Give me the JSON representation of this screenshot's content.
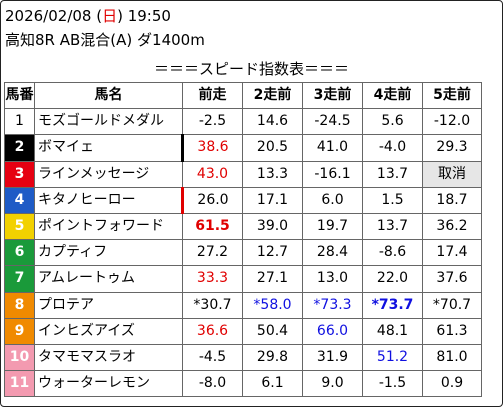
{
  "header": {
    "date_before": "2026/02/08 (",
    "weekday": "日",
    "date_after": ") 19:50",
    "race_info": "高知8R AB混合(A) ダ1400m"
  },
  "table_title": "＝＝＝スピード指数表＝＝＝",
  "columns": [
    "馬番",
    "馬名",
    "前走",
    "2走前",
    "3走前",
    "4走前",
    "5走前"
  ],
  "colors": {
    "waku": [
      "#ffffff",
      "#000000",
      "#e60012",
      "#1e5bc6",
      "#f2d100",
      "#1a9a3a",
      "#f08a00",
      "#f39ab0"
    ],
    "red": "#e00000",
    "blue": "#1010e0"
  },
  "rows": [
    {
      "num": "1",
      "name": "モズゴールドメダル",
      "v": [
        "-2.5",
        "14.6",
        "-24.5",
        "5.6",
        "-12.0"
      ]
    },
    {
      "num": "2",
      "name": "ボマイェ",
      "v": [
        "38.6",
        "20.5",
        "41.0",
        "-4.0",
        "29.3"
      ]
    },
    {
      "num": "3",
      "name": "ラインメッセージ",
      "v": [
        "43.0",
        "13.3",
        "-16.1",
        "13.7",
        "取消"
      ]
    },
    {
      "num": "4",
      "name": "キタノヒーロー",
      "v": [
        "26.0",
        "17.1",
        "6.0",
        "1.5",
        "18.7"
      ]
    },
    {
      "num": "5",
      "name": "ポイントフォワード",
      "v": [
        "61.5",
        "39.0",
        "19.7",
        "13.7",
        "36.2"
      ]
    },
    {
      "num": "6",
      "name": "カプティフ",
      "v": [
        "27.2",
        "12.7",
        "28.4",
        "-8.6",
        "17.4"
      ]
    },
    {
      "num": "7",
      "name": "アムレートゥム",
      "v": [
        "33.3",
        "27.1",
        "13.0",
        "22.0",
        "37.6"
      ]
    },
    {
      "num": "8",
      "name": "プロテア",
      "v": [
        "*30.7",
        "*58.0",
        "*73.3",
        "*73.7",
        "*70.7"
      ]
    },
    {
      "num": "9",
      "name": "インヒズアイズ",
      "v": [
        "36.6",
        "50.4",
        "66.0",
        "48.1",
        "61.3"
      ]
    },
    {
      "num": "10",
      "name": "タマモマスラオ",
      "v": [
        "-4.5",
        "29.8",
        "31.9",
        "51.2",
        "81.0"
      ]
    },
    {
      "num": "11",
      "name": "ウォーターレモン",
      "v": [
        "-8.0",
        "6.1",
        "9.0",
        "-1.5",
        "0.9"
      ]
    }
  ]
}
